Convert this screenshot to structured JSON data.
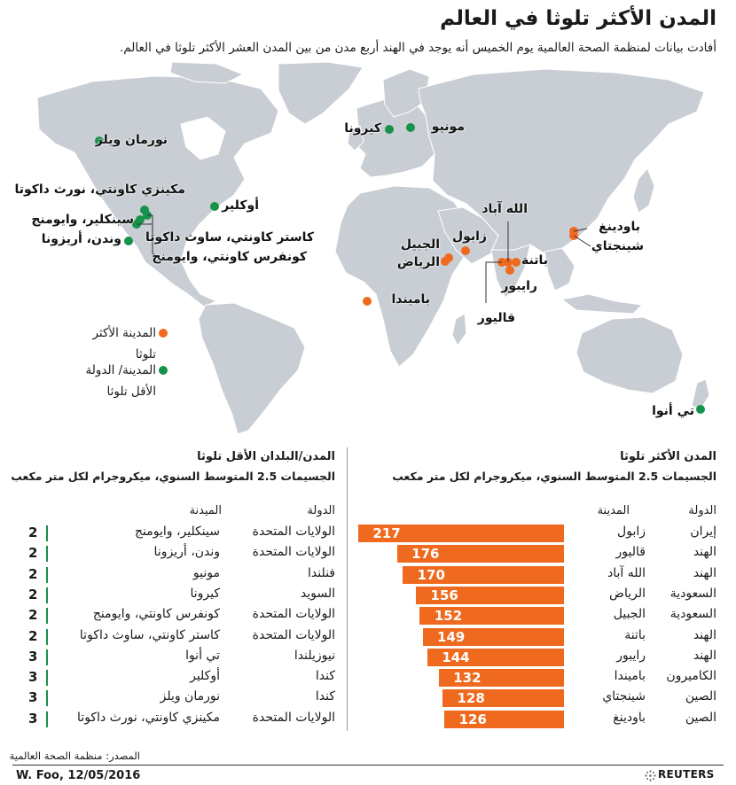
{
  "title": "المدن الأكثر تلوثا في العالم",
  "subtitle": "أفادت بيانات لمنظمة الصحة العالمية يوم الخميس أنه يوجد في الهند أربع مدن من بين المدن العشر الأكثر تلوثا في العالم.",
  "map_labels": {
    "norman_wells": "نورمان ويلز",
    "mckenzie": "مكينزي كاونتي، نورث داكوتا",
    "auckler": "أوكلير",
    "sinclair": "سينكلير، وايومنج",
    "wenden": "وندن، أريزونا",
    "custer": "كاستر كاونتي، ساوث داكوتا",
    "converse": "كونفرس كاونتي، وايومنج",
    "kiruna": "كيرونا",
    "muonio": "مونيو",
    "jubail": "الجبيل",
    "riyadh": "الرياض",
    "zabol": "زابول",
    "allahabad": "الله آباد",
    "patna": "باتنة",
    "raipur": "رايبور",
    "gwalior": "قاليور",
    "baoding": "باودينغ",
    "xingtai": "شينجتاي",
    "bamenda": "باميندا",
    "te_anau": "تي أنوا"
  },
  "legend": {
    "worst": "المدينة الأكثر تلوثا",
    "best": "المدينة/ الدولة الأقل تلوثا"
  },
  "colors": {
    "worst": "#ef6a1e",
    "best": "#16924a",
    "land": "#c9ced4",
    "water": "#ffffff"
  },
  "worst_section": {
    "title": "المدن الأكثر تلوثا",
    "subtitle": "الجسيمات 2.5 المتوسط السنوي، ميكروجرام لكل متر مكعب",
    "col_country": "الدولة",
    "col_city": "المدينة",
    "rows": [
      {
        "country": "إيران",
        "city": "زابول",
        "value": 217
      },
      {
        "country": "الهند",
        "city": "قاليور",
        "value": 176
      },
      {
        "country": "الهند",
        "city": "الله آباد",
        "value": 170
      },
      {
        "country": "السعودية",
        "city": "الرياض",
        "value": 156
      },
      {
        "country": "السعودية",
        "city": "الجبيل",
        "value": 152
      },
      {
        "country": "الهند",
        "city": "باتنة",
        "value": 149
      },
      {
        "country": "الهند",
        "city": "رايبور",
        "value": 144
      },
      {
        "country": "الكاميرون",
        "city": "باميندا",
        "value": 132
      },
      {
        "country": "الصين",
        "city": "شينجتاي",
        "value": 128
      },
      {
        "country": "الصين",
        "city": "باودينغ",
        "value": 126
      }
    ]
  },
  "best_section": {
    "title": "المدن/البلدان الأقل تلوثا",
    "subtitle": "الجسيمات 2.5 المتوسط السنوي، ميكروجرام لكل متر مكعب",
    "col_country": "الدولة",
    "col_city": "الميدنة",
    "rows": [
      {
        "country": "الولايات المتحدة",
        "city": "سينكلير، وايومنج",
        "value": 2
      },
      {
        "country": "الولايات المتحدة",
        "city": "وندن، أريزونا",
        "value": 2
      },
      {
        "country": "فنلندا",
        "city": "مونيو",
        "value": 2
      },
      {
        "country": "السويد",
        "city": "كيرونا",
        "value": 2
      },
      {
        "country": "الولايات المتحدة",
        "city": "كونفرس كاونتي، وايومنج",
        "value": 2
      },
      {
        "country": "الولايات المتحدة",
        "city": "كاستر كاونتي، ساوث داكوتا",
        "value": 2
      },
      {
        "country": "نيوزيلندا",
        "city": "تي أنوا",
        "value": 3
      },
      {
        "country": "كندا",
        "city": "أوكلير",
        "value": 3
      },
      {
        "country": "كندا",
        "city": "نورمان ويلز",
        "value": 3
      },
      {
        "country": "الولايات المتحدة",
        "city": "مكينزي كاونتي، نورث داكوتا",
        "value": 3
      }
    ]
  },
  "source": "المصدر: منظمة الصحة العالمية",
  "credit": "W. Foo, 12/05/2016",
  "brand": "REUTERS"
}
